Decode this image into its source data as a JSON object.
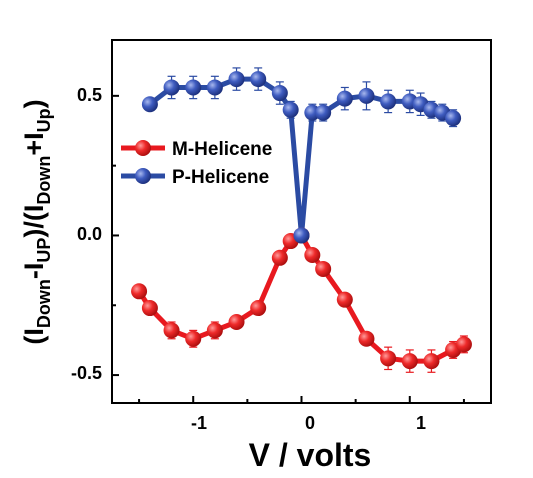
{
  "chart_data": {
    "type": "scatter",
    "xlabel": "V / volts",
    "ylabel_parts": {
      "open": "(I",
      "sub1": "Down",
      "minus": "-I",
      "sub2": "UP",
      "mid": ")/(I",
      "sub3": "Down",
      "plus": "+I",
      "sub4": "Up",
      "close": ")"
    },
    "xlim": [
      -1.75,
      1.75
    ],
    "ylim": [
      -0.6,
      0.7
    ],
    "xticks": [
      -1,
      0,
      1
    ],
    "xtick_labels": [
      "-1",
      "0",
      "1"
    ],
    "yticks": [
      -0.5,
      0.0,
      0.5
    ],
    "ytick_labels": [
      "-0.5",
      "0.0",
      "0.5"
    ],
    "legend_position": "upper-left",
    "series": [
      {
        "name": "M-Helicene",
        "color": "#e8191f",
        "x": [
          -1.5,
          -1.4,
          -1.2,
          -1.0,
          -0.8,
          -0.6,
          -0.4,
          -0.2,
          -0.1,
          0.0,
          0.1,
          0.2,
          0.4,
          0.6,
          0.8,
          1.0,
          1.2,
          1.4,
          1.5
        ],
        "y": [
          -0.2,
          -0.26,
          -0.34,
          -0.37,
          -0.34,
          -0.31,
          -0.26,
          -0.08,
          -0.02,
          0.0,
          -0.07,
          -0.12,
          -0.23,
          -0.37,
          -0.44,
          -0.45,
          -0.45,
          -0.41,
          -0.39
        ],
        "err": [
          0.0,
          0.0,
          0.03,
          0.03,
          0.03,
          0.02,
          0.02,
          0.0,
          0.0,
          0.0,
          0.0,
          0.0,
          0.0,
          0.02,
          0.04,
          0.04,
          0.04,
          0.03,
          0.03
        ]
      },
      {
        "name": "P-Helicene",
        "color": "#2b4ba3",
        "x": [
          -1.4,
          -1.2,
          -1.0,
          -0.8,
          -0.6,
          -0.4,
          -0.2,
          -0.1,
          0.0,
          0.1,
          0.2,
          0.4,
          0.6,
          0.8,
          1.0,
          1.1,
          1.2,
          1.3,
          1.4
        ],
        "y": [
          0.47,
          0.53,
          0.53,
          0.53,
          0.56,
          0.56,
          0.51,
          0.45,
          0.0,
          0.44,
          0.44,
          0.49,
          0.5,
          0.48,
          0.48,
          0.47,
          0.45,
          0.44,
          0.42
        ],
        "err": [
          0.02,
          0.04,
          0.04,
          0.04,
          0.04,
          0.04,
          0.04,
          0.03,
          0.0,
          0.03,
          0.03,
          0.04,
          0.05,
          0.04,
          0.04,
          0.04,
          0.03,
          0.03,
          0.03
        ]
      }
    ]
  }
}
